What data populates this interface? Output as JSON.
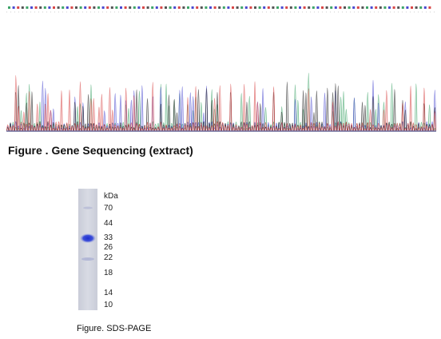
{
  "sequencing": {
    "caption": "Figure . Gene Sequencing (extract)",
    "trace_colors": {
      "A": "#3fa56a",
      "C": "#4a4ad0",
      "G": "#222222",
      "T": "#d84848"
    },
    "base_call_colors": [
      "#3fa56a",
      "#4a4ad0",
      "#d84848",
      "#555555"
    ]
  },
  "sds_page": {
    "caption": "Figure. SDS-PAGE",
    "unit_label": "kDa",
    "markers": [
      "70",
      "44",
      "33",
      "26",
      "22",
      "18",
      "14",
      "10"
    ],
    "band_color": "#2e3fd6"
  }
}
